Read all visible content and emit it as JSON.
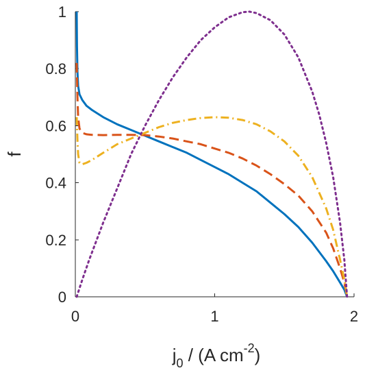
{
  "chart_data": {
    "type": "line",
    "xlabel_main": "j",
    "xlabel_sub": "0",
    "xlabel_rest": " / (A cm",
    "xlabel_sup": "-2",
    "xlabel_close": ")",
    "ylabel": "f",
    "xlim": [
      0,
      2
    ],
    "ylim": [
      0,
      1
    ],
    "xticks": [
      0,
      1,
      2
    ],
    "xtick_labels": [
      "0",
      "1",
      "2"
    ],
    "yticks": [
      0,
      0.2,
      0.4,
      0.6,
      0.8,
      1
    ],
    "ytick_labels": [
      "0",
      "0.2",
      "0.4",
      "0.6",
      "0.8",
      "1"
    ],
    "grid": false,
    "legend": "none",
    "series": [
      {
        "style": "solid",
        "color": "#0072BD",
        "x": [
          0.01,
          0.012,
          0.015,
          0.02,
          0.03,
          0.05,
          0.08,
          0.12,
          0.2,
          0.3,
          0.4,
          0.5,
          0.6,
          0.7,
          0.8,
          0.9,
          1.0,
          1.1,
          1.2,
          1.3,
          1.4,
          1.5,
          1.6,
          1.7,
          1.8,
          1.85,
          1.9,
          1.93,
          1.95
        ],
        "y": [
          1.0,
          0.88,
          0.79,
          0.74,
          0.71,
          0.69,
          0.67,
          0.655,
          0.63,
          0.605,
          0.585,
          0.565,
          0.545,
          0.525,
          0.505,
          0.48,
          0.455,
          0.43,
          0.4,
          0.37,
          0.33,
          0.29,
          0.245,
          0.19,
          0.125,
          0.09,
          0.05,
          0.025,
          0.0
        ]
      },
      {
        "style": "dashed",
        "color": "#D95319",
        "x": [
          0.01,
          0.015,
          0.02,
          0.03,
          0.05,
          0.08,
          0.12,
          0.2,
          0.3,
          0.4,
          0.5,
          0.6,
          0.7,
          0.8,
          0.9,
          1.0,
          1.1,
          1.2,
          1.3,
          1.4,
          1.5,
          1.6,
          1.7,
          1.8,
          1.85,
          1.9,
          1.93,
          1.95
        ],
        "y": [
          0.82,
          0.7,
          0.63,
          0.59,
          0.575,
          0.57,
          0.568,
          0.567,
          0.568,
          0.568,
          0.567,
          0.562,
          0.555,
          0.545,
          0.535,
          0.52,
          0.505,
          0.485,
          0.46,
          0.43,
          0.395,
          0.355,
          0.3,
          0.225,
          0.17,
          0.1,
          0.05,
          0.0
        ]
      },
      {
        "style": "dash-dot",
        "color": "#EDB120",
        "x": [
          0.01,
          0.015,
          0.02,
          0.03,
          0.05,
          0.08,
          0.12,
          0.2,
          0.3,
          0.4,
          0.5,
          0.6,
          0.7,
          0.8,
          0.9,
          1.0,
          1.1,
          1.2,
          1.3,
          1.4,
          1.5,
          1.6,
          1.7,
          1.8,
          1.85,
          1.9,
          1.93,
          1.95
        ],
        "y": [
          0.63,
          0.55,
          0.5,
          0.47,
          0.465,
          0.47,
          0.48,
          0.505,
          0.535,
          0.555,
          0.575,
          0.595,
          0.61,
          0.62,
          0.627,
          0.63,
          0.628,
          0.62,
          0.605,
          0.58,
          0.545,
          0.495,
          0.42,
          0.31,
          0.235,
          0.13,
          0.06,
          0.0
        ]
      },
      {
        "style": "dotted",
        "color": "#7E2F8E",
        "x": [
          0.01,
          0.05,
          0.1,
          0.2,
          0.3,
          0.4,
          0.5,
          0.6,
          0.7,
          0.8,
          0.9,
          1.0,
          1.1,
          1.2,
          1.25,
          1.3,
          1.4,
          1.5,
          1.6,
          1.7,
          1.75,
          1.8,
          1.85,
          1.9,
          1.93,
          1.95
        ],
        "y": [
          0.0,
          0.06,
          0.13,
          0.26,
          0.38,
          0.5,
          0.6,
          0.69,
          0.77,
          0.84,
          0.9,
          0.945,
          0.98,
          0.998,
          1.0,
          0.995,
          0.97,
          0.92,
          0.84,
          0.72,
          0.64,
          0.54,
          0.42,
          0.26,
          0.13,
          0.0
        ]
      }
    ]
  }
}
